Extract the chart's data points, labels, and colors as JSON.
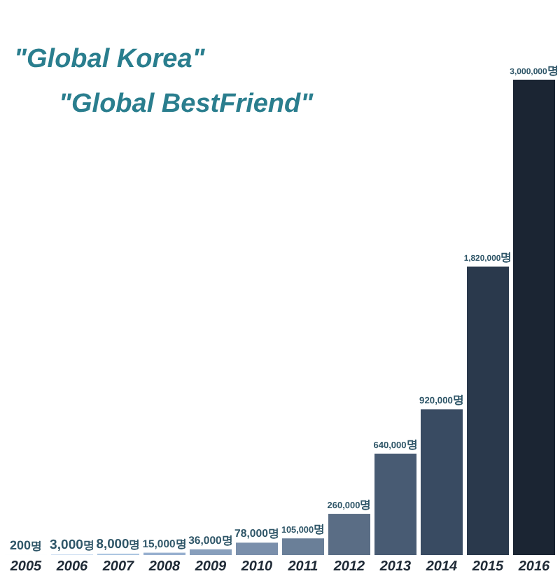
{
  "chart_data": {
    "type": "bar",
    "title": "\"Global Korea\"",
    "subtitle": "\"Global BestFriend\"",
    "categories": [
      "2005",
      "2006",
      "2007",
      "2008",
      "2009",
      "2010",
      "2011",
      "2012",
      "2013",
      "2014",
      "2015",
      "2016"
    ],
    "values": [
      200,
      3000,
      8000,
      15000,
      36000,
      78000,
      105000,
      260000,
      640000,
      920000,
      1820000,
      3000000
    ],
    "colors": [
      "#c6dcf2",
      "#b9d2ec",
      "#a9c3e0",
      "#98b0cf",
      "#889fbc",
      "#7a8fab",
      "#6a7f98",
      "#5a6d85",
      "#485b73",
      "#394b62",
      "#2a394c",
      "#1b2533"
    ],
    "value_labels": [
      "200명",
      "3,000명",
      "8,000명",
      "15,000명",
      "36,000명",
      "78,000명",
      "105,000명",
      "260,000명",
      "640,000명",
      "920,000명",
      "1,820,000명",
      "3,000,000명"
    ]
  }
}
